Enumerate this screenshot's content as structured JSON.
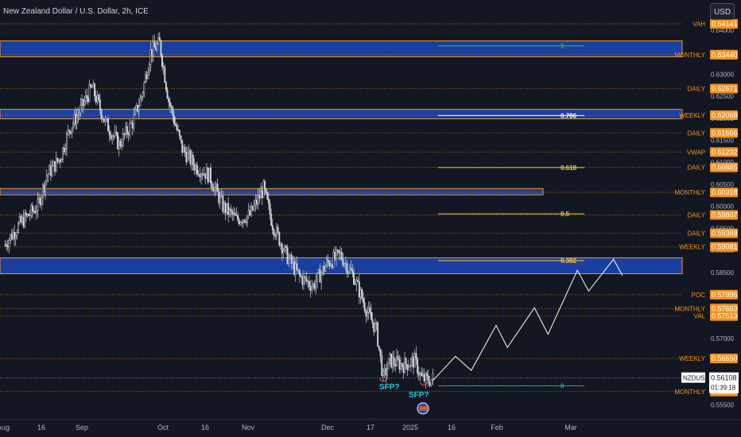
{
  "title": "New Zealand Dollar / U.S. Dollar, 2h, ICE",
  "currency_button": "USD",
  "colors": {
    "background": "#131722",
    "candle": "#d1d4dc",
    "zone": "#1b3fa0",
    "zone_border": "#f7931a",
    "level_line": "#f7931a",
    "level_tag": "#f7931a",
    "fib": "#f7c548",
    "fib_top": "#4caf50",
    "fib_bottom": "#26a69a",
    "sfp": "#26c6da",
    "projection": "#ffffff"
  },
  "chart_data": {
    "type": "candlestick",
    "symbol": "NZDUSD",
    "ylim": [
      0.5558,
      0.6414
    ],
    "y_ticks": [
      0.64,
      0.635,
      0.63,
      0.625,
      0.62,
      0.615,
      0.61,
      0.605,
      0.6,
      0.595,
      0.59,
      0.585,
      0.58,
      0.575,
      0.57,
      0.565,
      0.56,
      0.555
    ],
    "x_ticks": [
      "Aug",
      "16",
      "Sep",
      "Oct",
      "16",
      "Nov",
      "Dec",
      "17",
      "2025",
      "16",
      "Feb",
      "Mar"
    ],
    "price_path": [
      {
        "d": 1,
        "p": 0.591
      },
      {
        "d": 8,
        "p": 0.596
      },
      {
        "d": 16,
        "p": 0.6
      },
      {
        "d": 20,
        "p": 0.607
      },
      {
        "d": 26,
        "p": 0.611
      },
      {
        "d": 30,
        "p": 0.6175
      },
      {
        "d": 35,
        "p": 0.622
      },
      {
        "d": 40,
        "p": 0.627
      },
      {
        "d": 46,
        "p": 0.619
      },
      {
        "d": 52,
        "p": 0.614
      },
      {
        "d": 58,
        "p": 0.619
      },
      {
        "d": 62,
        "p": 0.625
      },
      {
        "d": 66,
        "p": 0.635
      },
      {
        "d": 70,
        "p": 0.637
      },
      {
        "d": 74,
        "p": 0.624
      },
      {
        "d": 80,
        "p": 0.613
      },
      {
        "d": 86,
        "p": 0.609
      },
      {
        "d": 92,
        "p": 0.607
      },
      {
        "d": 98,
        "p": 0.6
      },
      {
        "d": 104,
        "p": 0.597
      },
      {
        "d": 110,
        "p": 0.598
      },
      {
        "d": 116,
        "p": 0.604
      },
      {
        "d": 120,
        "p": 0.596
      },
      {
        "d": 126,
        "p": 0.589
      },
      {
        "d": 132,
        "p": 0.584
      },
      {
        "d": 138,
        "p": 0.582
      },
      {
        "d": 144,
        "p": 0.587
      },
      {
        "d": 150,
        "p": 0.589
      },
      {
        "d": 156,
        "p": 0.584
      },
      {
        "d": 162,
        "p": 0.576
      },
      {
        "d": 166,
        "p": 0.572
      },
      {
        "d": 169,
        "p": 0.561
      },
      {
        "d": 172,
        "p": 0.565
      },
      {
        "d": 178,
        "p": 0.564
      },
      {
        "d": 183,
        "p": 0.565
      },
      {
        "d": 186,
        "p": 0.561
      },
      {
        "d": 189,
        "p": 0.5605
      },
      {
        "d": 191,
        "p": 0.561
      }
    ],
    "projection": [
      {
        "d": 191,
        "p": 0.5605
      },
      {
        "d": 201,
        "p": 0.566
      },
      {
        "d": 208,
        "p": 0.5628
      },
      {
        "d": 219,
        "p": 0.573
      },
      {
        "d": 224,
        "p": 0.568
      },
      {
        "d": 236,
        "p": 0.577
      },
      {
        "d": 242,
        "p": 0.571
      },
      {
        "d": 255,
        "p": 0.5855
      },
      {
        "d": 260,
        "p": 0.5808
      },
      {
        "d": 271,
        "p": 0.588
      },
      {
        "d": 275,
        "p": 0.5843
      }
    ],
    "zones": [
      {
        "top": 0.636,
        "bottom": 0.6338,
        "label": "MONTHLY"
      },
      {
        "top": 0.6212,
        "bottom": 0.6198,
        "label": "WEEKLY"
      },
      {
        "top": 0.6036,
        "bottom": 0.6026,
        "label": "MONTHLY"
      },
      {
        "top": 0.5868,
        "bottom": 0.5845,
        "label": "WEEKLY"
      }
    ],
    "levels": [
      {
        "label": "VAH",
        "value": "0.64141",
        "v": 0.64141
      },
      {
        "label": "MONTHLY",
        "value": "0.63440",
        "v": 0.6344
      },
      {
        "label": "DAILY",
        "value": "0.62671",
        "v": 0.62671
      },
      {
        "label": "WEEKLY",
        "value": "0.62068",
        "v": 0.62068
      },
      {
        "label": "DAILY",
        "value": "0.61666",
        "v": 0.61666
      },
      {
        "label": "VWAP",
        "value": "0.61232",
        "v": 0.61232
      },
      {
        "label": "DAILY",
        "value": "0.60885",
        "v": 0.60885
      },
      {
        "label": "MONTHLY",
        "value": "0.60318",
        "v": 0.60318
      },
      {
        "label": "DAILY",
        "value": "0.59807",
        "v": 0.59807
      },
      {
        "label": "DAILY",
        "value": "0.59389",
        "v": 0.59389
      },
      {
        "label": "WEEKLY",
        "value": "0.59081",
        "v": 0.59081
      },
      {
        "label": "POC",
        "value": "0.57996",
        "v": 0.57996
      },
      {
        "label": "MONTHLY",
        "value": "0.57683",
        "v": 0.57683
      },
      {
        "label": "VAL",
        "value": "0.57513",
        "v": 0.57513
      },
      {
        "label": "WEEKLY",
        "value": "0.56550",
        "v": 0.5655
      },
      {
        "label": "MONTHLY",
        "value": "0.55800",
        "v": 0.558
      }
    ],
    "fib_levels": [
      {
        "label": "1",
        "v": 0.6364
      },
      {
        "label": "0.786",
        "v": 0.6206
      },
      {
        "label": "0.618",
        "v": 0.6088
      },
      {
        "label": "0.5",
        "v": 0.5983
      },
      {
        "label": "0.382",
        "v": 0.5877
      },
      {
        "label": "0",
        "v": 0.5593
      }
    ],
    "current": {
      "symbol": "NZDUSD",
      "price": "0.56108",
      "countdown": "01:39:18"
    },
    "annotations": [
      "SFP?",
      "SFP?"
    ]
  }
}
